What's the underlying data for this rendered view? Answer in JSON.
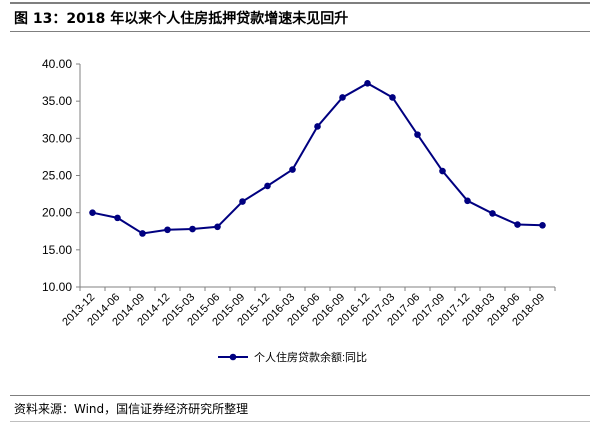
{
  "figure": {
    "title": "图 13：2018 年以来个人住房抵押贷款增速未见回升",
    "source": "资料来源：Wind，国信证券经济研究所整理"
  },
  "chart_data": {
    "type": "line",
    "categories": [
      "2013-12",
      "2014-06",
      "2014-09",
      "2014-12",
      "2015-03",
      "2015-06",
      "2015-09",
      "2015-12",
      "2016-03",
      "2016-06",
      "2016-09",
      "2016-12",
      "2017-03",
      "2017-06",
      "2017-09",
      "2017-12",
      "2018-03",
      "2018-06",
      "2018-09"
    ],
    "series": [
      {
        "name": "个人住房贷款余额:同比",
        "values": [
          20.0,
          19.3,
          17.2,
          17.7,
          17.8,
          18.1,
          21.5,
          23.6,
          25.8,
          31.6,
          35.5,
          37.4,
          35.5,
          30.5,
          25.6,
          21.6,
          19.9,
          18.4,
          18.3
        ],
        "color": "#000080"
      }
    ],
    "ylim": [
      10,
      40
    ],
    "yticks": [
      "10.00",
      "15.00",
      "20.00",
      "25.00",
      "30.00",
      "35.00",
      "40.00"
    ],
    "grid": false,
    "legend": "bottom-center"
  }
}
